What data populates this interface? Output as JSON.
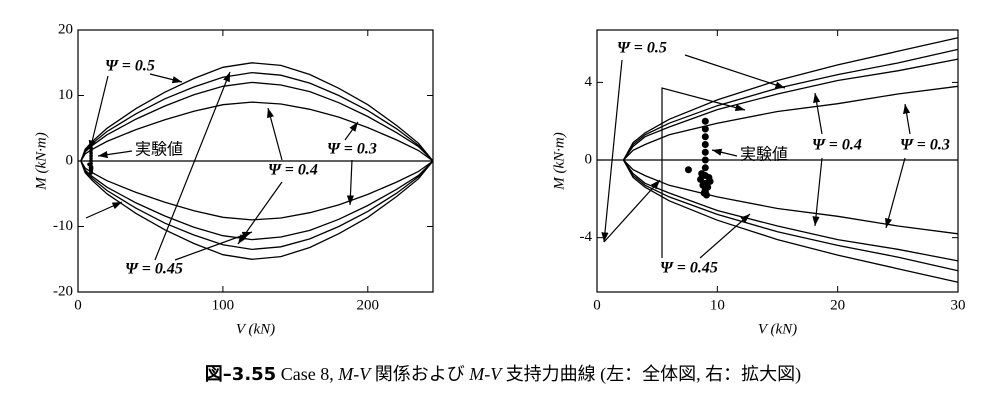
{
  "chart_data": [
    {
      "type": "line",
      "xlabel": "V (kN)",
      "ylabel": "M (kN·m)",
      "xlim": [
        0,
        245
      ],
      "ylim": [
        -20,
        20
      ],
      "xticks": [
        0,
        100,
        200
      ],
      "yticks": [
        -20,
        -10,
        0,
        10,
        20
      ],
      "grid": false,
      "zero_line": 0,
      "x": [
        2,
        5,
        10,
        20,
        40,
        60,
        80,
        100,
        120,
        140,
        160,
        180,
        200,
        220,
        235,
        245
      ],
      "series": [
        {
          "color": "#000000",
          "values": [
            0,
            1.8,
            3,
            5,
            8,
            10.5,
            12.6,
            14.3,
            15,
            14.6,
            13.2,
            11.1,
            8.6,
            5.4,
            2.7,
            0
          ]
        },
        {
          "color": "#000000",
          "values": [
            0,
            1.6,
            2.7,
            4.5,
            7.2,
            9.5,
            11.3,
            12.8,
            13.5,
            13.1,
            11.9,
            10,
            7.7,
            4.9,
            2.4,
            0
          ]
        },
        {
          "color": "#000000",
          "values": [
            0,
            1.4,
            2.4,
            4,
            6.4,
            8.4,
            10.1,
            11.4,
            12,
            11.6,
            10.6,
            8.9,
            6.8,
            4.3,
            2.2,
            0
          ]
        },
        {
          "color": "#000000",
          "values": [
            0,
            1.1,
            1.8,
            3,
            4.8,
            6.3,
            7.6,
            8.6,
            9,
            8.7,
            7.9,
            6.7,
            5.1,
            3.2,
            1.6,
            0
          ]
        },
        {
          "color": "#000000",
          "values": [
            0,
            -1.8,
            -3,
            -5,
            -8,
            -10.5,
            -12.6,
            -14.3,
            -15,
            -14.6,
            -13.2,
            -11.1,
            -8.6,
            -5.4,
            -2.7,
            0
          ]
        },
        {
          "color": "#000000",
          "values": [
            0,
            -1.6,
            -2.7,
            -4.5,
            -7.2,
            -9.5,
            -11.3,
            -12.8,
            -13.5,
            -13.1,
            -11.9,
            -10,
            -7.7,
            -4.9,
            -2.4,
            0
          ]
        },
        {
          "color": "#000000",
          "values": [
            0,
            -1.4,
            -2.4,
            -4,
            -6.4,
            -8.4,
            -10.1,
            -11.4,
            -12,
            -11.6,
            -10.6,
            -8.9,
            -6.8,
            -4.3,
            -2.2,
            0
          ]
        },
        {
          "color": "#000000",
          "values": [
            0,
            -1.1,
            -1.8,
            -3,
            -4.8,
            -6.3,
            -7.6,
            -8.6,
            -9,
            -8.7,
            -7.9,
            -6.7,
            -5.1,
            -3.2,
            -1.6,
            0
          ]
        }
      ],
      "points": {
        "color": "#000000",
        "x": [
          9,
          9,
          9,
          9,
          9,
          9,
          9,
          9,
          9,
          9,
          9.1,
          8.9,
          8.6,
          8.8,
          9.2,
          9.4,
          8.7,
          9,
          9.3,
          7.6
        ],
        "y": [
          2,
          1.6,
          1.2,
          0.8,
          0.4,
          0,
          -0.4,
          -0.8,
          -1.2,
          -1.6,
          -1.8,
          -1.7,
          -1,
          -1.3,
          -1.4,
          -1.1,
          -0.7,
          -1.5,
          -0.9,
          -0.5
        ]
      },
      "annotations": [
        "Ψ = 0.5",
        "実験値",
        "Ψ = 0.4",
        "Ψ = 0.3",
        "Ψ = 0.45"
      ]
    },
    {
      "type": "line",
      "xlabel": "V (kN)",
      "ylabel": "M (kN·m)",
      "xlim": [
        0,
        30
      ],
      "ylim": [
        -6.8,
        6.7
      ],
      "xticks": [
        0,
        10,
        20,
        30
      ],
      "yticks": [
        -4,
        0,
        4
      ],
      "grid": false,
      "zero_line": 0,
      "x": [
        2.2,
        3,
        4,
        6,
        10,
        15,
        20,
        25,
        30
      ],
      "series": [
        {
          "color": "#000000",
          "values": [
            0,
            0.9,
            1.4,
            2.1,
            3.1,
            4.1,
            4.9,
            5.6,
            6.3
          ]
        },
        {
          "color": "#000000",
          "values": [
            0,
            0.8,
            1.3,
            1.9,
            2.8,
            3.7,
            4.4,
            5,
            5.7
          ]
        },
        {
          "color": "#000000",
          "values": [
            0,
            0.7,
            1.2,
            1.7,
            2.6,
            3.4,
            4.1,
            4.6,
            5.2
          ]
        },
        {
          "color": "#000000",
          "values": [
            0,
            0.5,
            0.8,
            1.3,
            1.9,
            2.5,
            2.9,
            3.4,
            3.8
          ]
        },
        {
          "color": "#000000",
          "values": [
            0,
            -0.9,
            -1.4,
            -2.1,
            -3.1,
            -4.1,
            -4.9,
            -5.6,
            -6.3
          ]
        },
        {
          "color": "#000000",
          "values": [
            0,
            -0.8,
            -1.3,
            -1.9,
            -2.8,
            -3.7,
            -4.4,
            -5,
            -5.7
          ]
        },
        {
          "color": "#000000",
          "values": [
            0,
            -0.7,
            -1.2,
            -1.7,
            -2.6,
            -3.4,
            -4.1,
            -4.6,
            -5.2
          ]
        },
        {
          "color": "#000000",
          "values": [
            0,
            -0.5,
            -0.8,
            -1.3,
            -1.9,
            -2.5,
            -2.9,
            -3.4,
            -3.8
          ]
        }
      ],
      "points": {
        "color": "#000000",
        "x": [
          9,
          9,
          9,
          9,
          9,
          9,
          9,
          9,
          9,
          9,
          9.1,
          8.9,
          8.6,
          8.8,
          9.2,
          9.4,
          8.7,
          9,
          9.3,
          7.6
        ],
        "y": [
          2,
          1.6,
          1.2,
          0.8,
          0.4,
          0,
          -0.4,
          -0.8,
          -1.2,
          -1.6,
          -1.8,
          -1.7,
          -1,
          -1.3,
          -1.4,
          -1.1,
          -0.7,
          -1.5,
          -0.9,
          -0.5
        ]
      },
      "annotations": [
        "Ψ = 0.5",
        "実験値",
        "Ψ = 0.4",
        "Ψ = 0.3",
        "Ψ = 0.45"
      ]
    }
  ],
  "caption": [
    "図–3.55",
    " Case 8, ",
    "M-V",
    " 関係および ",
    "M-V",
    " 支持力曲線 (左：全体図, 右：拡大図)"
  ]
}
